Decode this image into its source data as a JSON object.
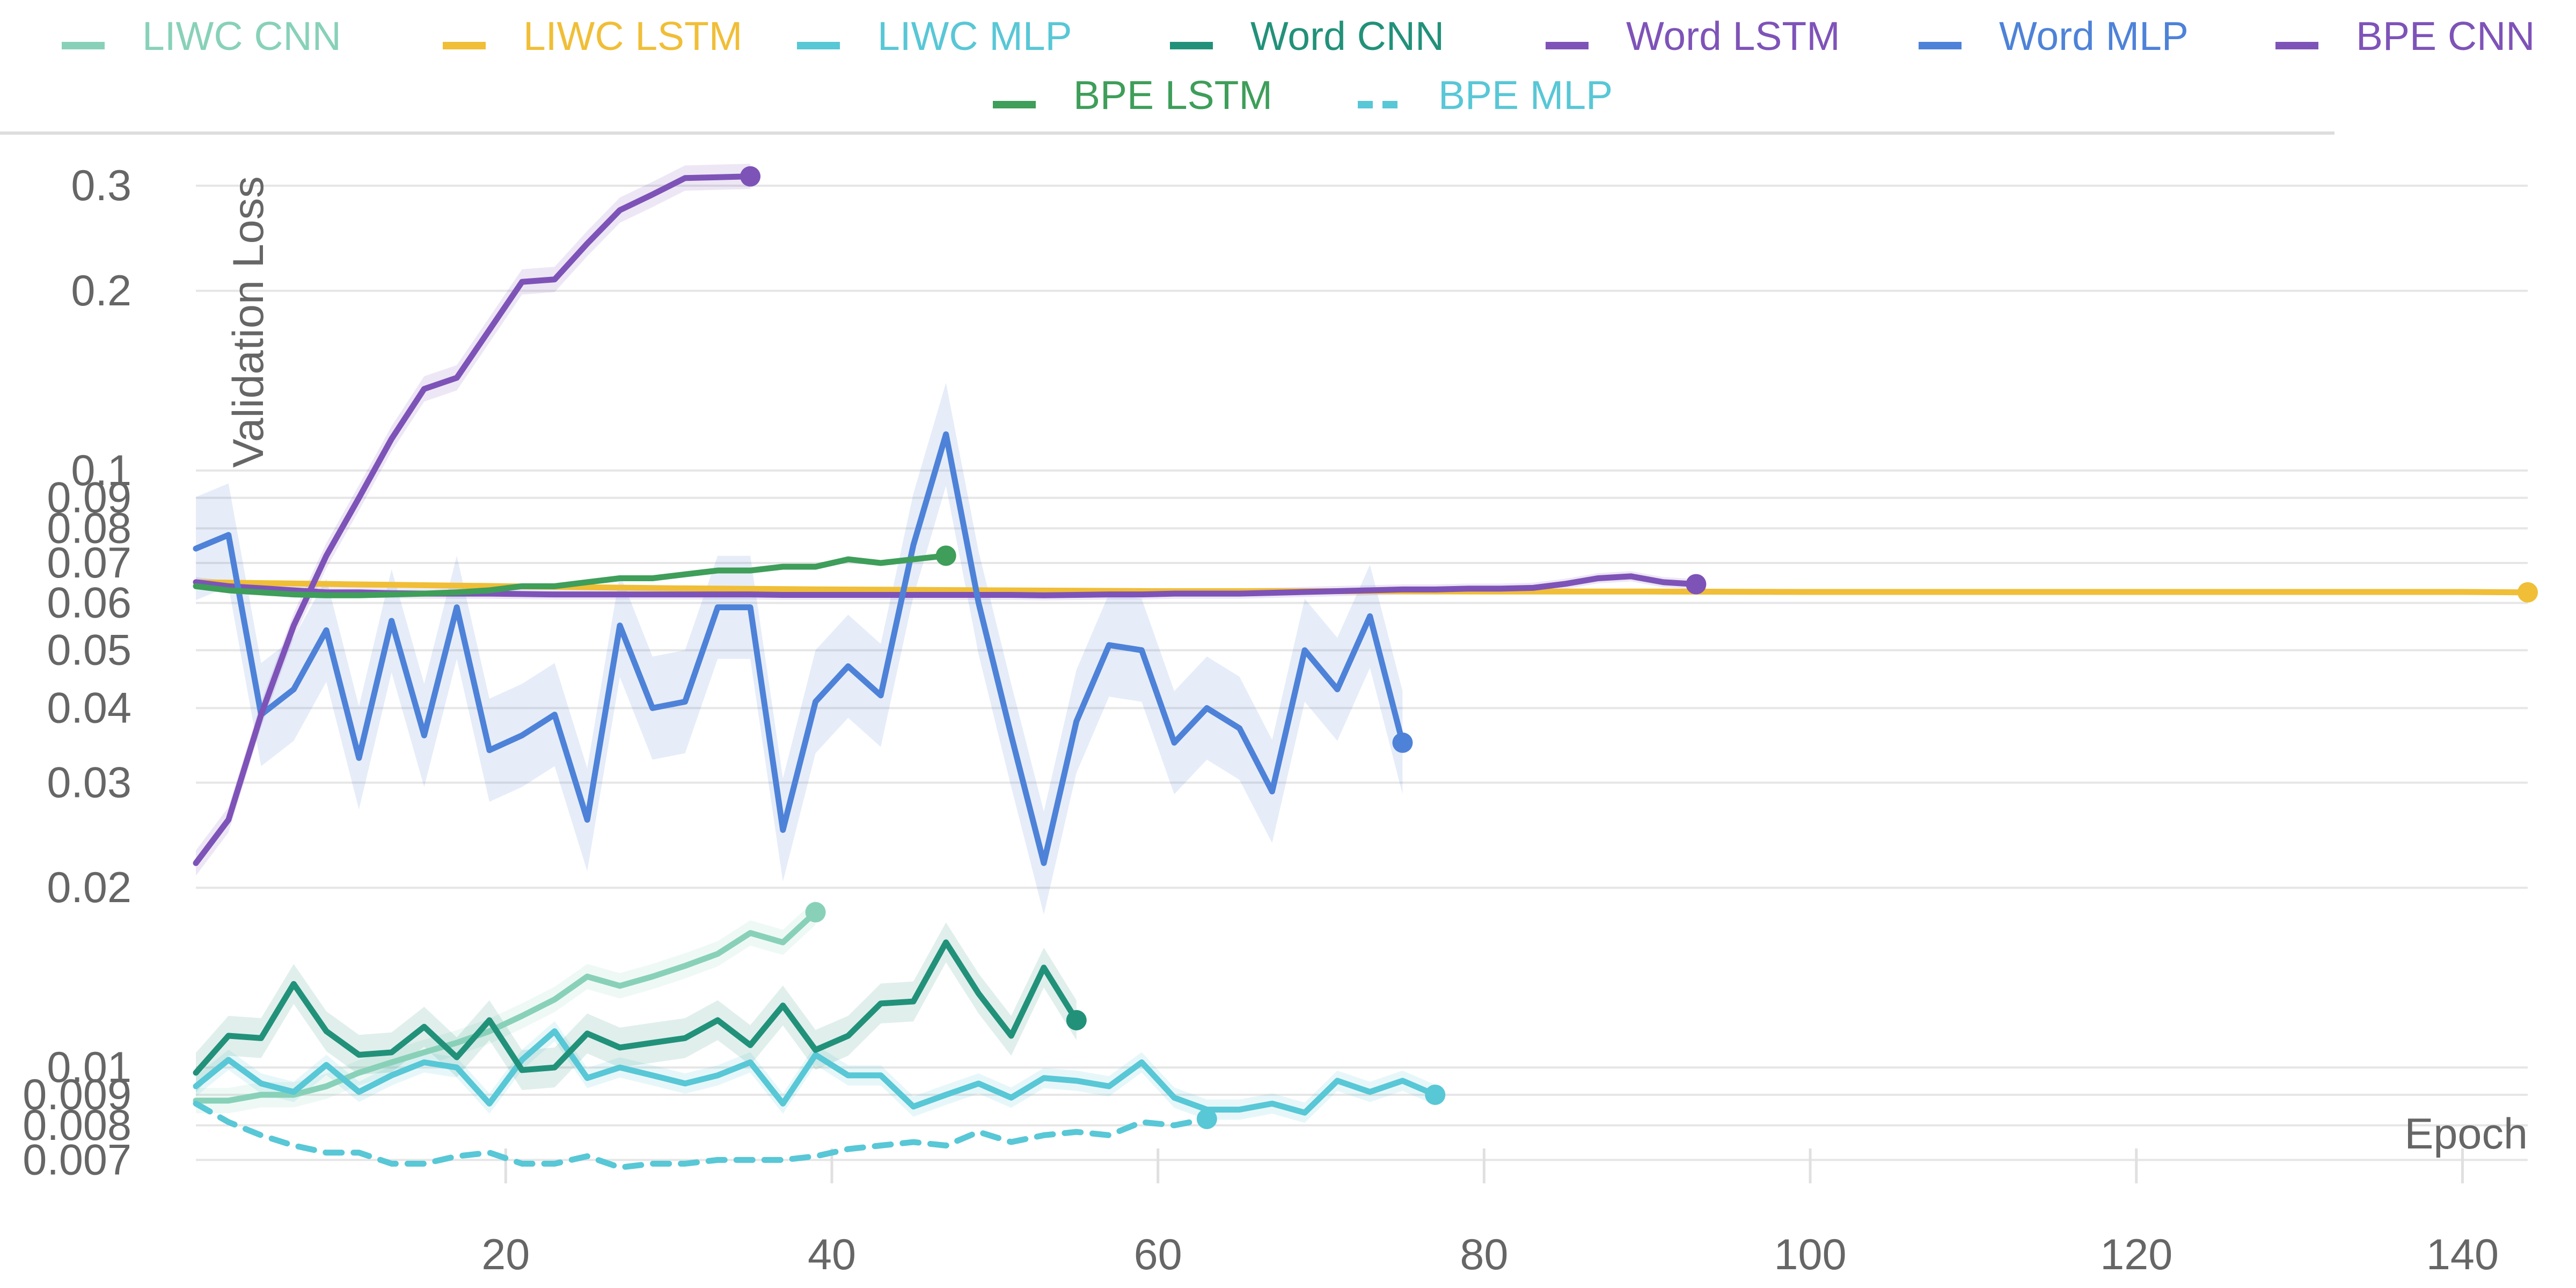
{
  "chart_data": {
    "type": "line",
    "title": "",
    "xlabel": "Epoch",
    "ylabel": "Validation Loss",
    "y_scale": "log",
    "xlim": [
      1,
      144
    ],
    "ylim": [
      0.0062,
      0.33
    ],
    "grid": true,
    "legend_placement": "top",
    "x_ticks": [
      20,
      40,
      60,
      80,
      100,
      120,
      140
    ],
    "y_ticks": [
      {
        "value": 0.3,
        "label": "0.3"
      },
      {
        "value": 0.2,
        "label": "0.2"
      },
      {
        "value": 0.1,
        "label": "0.1"
      },
      {
        "value": 0.09,
        "label": "0.09"
      },
      {
        "value": 0.08,
        "label": "0.08"
      },
      {
        "value": 0.07,
        "label": "0.07"
      },
      {
        "value": 0.06,
        "label": "0.06"
      },
      {
        "value": 0.05,
        "label": "0.05"
      },
      {
        "value": 0.04,
        "label": "0.04"
      },
      {
        "value": 0.03,
        "label": "0.03"
      },
      {
        "value": 0.02,
        "label": "0.02"
      },
      {
        "value": 0.01,
        "label": "0.01"
      },
      {
        "value": 0.009,
        "label": "0.009"
      },
      {
        "value": 0.008,
        "label": "0.008"
      },
      {
        "value": 0.007,
        "label": "0.007"
      }
    ],
    "series": [
      {
        "name": "LIWC CNN",
        "color": "#88d1b8",
        "dash": false,
        "x": [
          1,
          3,
          5,
          7,
          9,
          11,
          13,
          15,
          17,
          19,
          21,
          23,
          25,
          27,
          29,
          31,
          33,
          35,
          37,
          39
        ],
        "y": [
          0.0088,
          0.0088,
          0.009,
          0.009,
          0.0093,
          0.0098,
          0.0102,
          0.0106,
          0.011,
          0.0115,
          0.0122,
          0.013,
          0.0142,
          0.0137,
          0.0142,
          0.0148,
          0.0155,
          0.0168,
          0.0162,
          0.0182
        ],
        "band": 0.05
      },
      {
        "name": "LIWC LSTM",
        "color": "#f0be37",
        "dash": false,
        "x": [
          1,
          10,
          20,
          30,
          40,
          50,
          60,
          70,
          80,
          90,
          100,
          110,
          120,
          130,
          140,
          144
        ],
        "y": [
          0.065,
          0.0645,
          0.064,
          0.0635,
          0.0632,
          0.063,
          0.0628,
          0.0628,
          0.0627,
          0.0627,
          0.0626,
          0.0626,
          0.0626,
          0.0626,
          0.0626,
          0.0625
        ],
        "band": 0.0
      },
      {
        "name": "LIWC MLP",
        "color": "#58c7d6",
        "dash": false,
        "x": [
          1,
          3,
          5,
          7,
          9,
          11,
          13,
          15,
          17,
          19,
          21,
          23,
          25,
          27,
          29,
          31,
          33,
          35,
          37,
          39,
          41,
          43,
          45,
          47,
          49,
          51,
          53,
          55,
          57,
          59,
          61,
          63,
          65,
          67,
          69,
          71,
          73,
          75,
          77
        ],
        "y": [
          0.0093,
          0.0103,
          0.0094,
          0.0091,
          0.0101,
          0.0091,
          0.0097,
          0.0102,
          0.01,
          0.0087,
          0.0103,
          0.0115,
          0.0096,
          0.01,
          0.0097,
          0.0094,
          0.0097,
          0.0102,
          0.0087,
          0.0105,
          0.0097,
          0.0097,
          0.0086,
          0.009,
          0.0094,
          0.0089,
          0.0096,
          0.0095,
          0.0093,
          0.0102,
          0.0089,
          0.0085,
          0.0085,
          0.0087,
          0.0084,
          0.0095,
          0.0091,
          0.0095,
          0.009
        ],
        "band": 0.04
      },
      {
        "name": "Word CNN",
        "color": "#22917a",
        "dash": false,
        "x": [
          1,
          3,
          5,
          7,
          9,
          11,
          13,
          15,
          17,
          19,
          21,
          23,
          25,
          27,
          29,
          31,
          33,
          35,
          37,
          39,
          41,
          43,
          45,
          47,
          49,
          51,
          53,
          55
        ],
        "y": [
          0.0098,
          0.0113,
          0.0112,
          0.0138,
          0.0115,
          0.0105,
          0.0106,
          0.0117,
          0.0104,
          0.012,
          0.0099,
          0.01,
          0.0114,
          0.0108,
          0.011,
          0.0112,
          0.012,
          0.0109,
          0.0127,
          0.0107,
          0.0113,
          0.0128,
          0.0129,
          0.0162,
          0.0133,
          0.0113,
          0.0147,
          0.012
        ],
        "band": 0.08
      },
      {
        "name": "Word LSTM",
        "color": "#7e53b8",
        "dash": false,
        "x": [
          1,
          3,
          5,
          7,
          9,
          11,
          13,
          15,
          17,
          19,
          21,
          23,
          25,
          27,
          29,
          31,
          33,
          35,
          37,
          39,
          41,
          43,
          45,
          47,
          49,
          51,
          53,
          55,
          57,
          59,
          61,
          63,
          65,
          67,
          69,
          71,
          73,
          75,
          77,
          79,
          81,
          83,
          85,
          87,
          89,
          91,
          93
        ],
        "y": [
          0.065,
          0.064,
          0.0635,
          0.063,
          0.0625,
          0.0625,
          0.0623,
          0.0622,
          0.0622,
          0.0622,
          0.0621,
          0.062,
          0.062,
          0.062,
          0.062,
          0.062,
          0.062,
          0.062,
          0.0619,
          0.0619,
          0.0619,
          0.0619,
          0.0619,
          0.0619,
          0.0619,
          0.0619,
          0.0618,
          0.0619,
          0.062,
          0.062,
          0.0622,
          0.0622,
          0.0622,
          0.0624,
          0.0626,
          0.0628,
          0.063,
          0.0632,
          0.0632,
          0.0634,
          0.0634,
          0.0636,
          0.0646,
          0.066,
          0.0665,
          0.065,
          0.0645
        ],
        "band": 0.02
      },
      {
        "name": "Word MLP",
        "color": "#4e82d8",
        "dash": false,
        "x": [
          1,
          3,
          5,
          7,
          9,
          11,
          13,
          15,
          17,
          19,
          21,
          23,
          25,
          27,
          29,
          31,
          33,
          35,
          37,
          39,
          41,
          43,
          45,
          47,
          49,
          51,
          53,
          55,
          57,
          59,
          61,
          63,
          65,
          67,
          69,
          71,
          73,
          75
        ],
        "y": [
          0.074,
          0.078,
          0.039,
          0.043,
          0.054,
          0.033,
          0.056,
          0.036,
          0.059,
          0.034,
          0.036,
          0.039,
          0.026,
          0.055,
          0.04,
          0.041,
          0.059,
          0.059,
          0.025,
          0.041,
          0.047,
          0.042,
          0.075,
          0.115,
          0.06,
          0.036,
          0.022,
          0.038,
          0.051,
          0.05,
          0.035,
          0.04,
          0.037,
          0.029,
          0.05,
          0.043,
          0.057,
          0.035
        ],
        "band": 0.22
      },
      {
        "name": "BPE CNN",
        "color": "#7e53b8",
        "dash": false,
        "x": [
          1,
          3,
          5,
          7,
          9,
          11,
          13,
          15,
          17,
          19,
          21,
          23,
          25,
          27,
          29,
          31,
          33,
          35
        ],
        "y": [
          0.022,
          0.026,
          0.039,
          0.055,
          0.072,
          0.09,
          0.113,
          0.137,
          0.143,
          0.172,
          0.207,
          0.209,
          0.24,
          0.273,
          0.29,
          0.309,
          0.31,
          0.311
        ],
        "band": 0.05
      },
      {
        "name": "BPE LSTM",
        "color": "#3e9e5a",
        "dash": false,
        "x": [
          1,
          3,
          5,
          7,
          9,
          11,
          13,
          15,
          17,
          19,
          21,
          23,
          25,
          27,
          29,
          31,
          33,
          35,
          37,
          39,
          41,
          43,
          45,
          47
        ],
        "y": [
          0.064,
          0.063,
          0.0625,
          0.062,
          0.0618,
          0.0618,
          0.062,
          0.0622,
          0.0625,
          0.063,
          0.064,
          0.064,
          0.065,
          0.066,
          0.066,
          0.067,
          0.068,
          0.068,
          0.069,
          0.069,
          0.071,
          0.07,
          0.071,
          0.072
        ],
        "band": 0.0
      },
      {
        "name": "BPE MLP",
        "color": "#58c7d6",
        "dash": true,
        "x": [
          1,
          3,
          5,
          7,
          9,
          11,
          13,
          15,
          17,
          19,
          21,
          23,
          25,
          27,
          29,
          31,
          33,
          35,
          37,
          39,
          41,
          43,
          45,
          47,
          49,
          51,
          53,
          55,
          57,
          59,
          61,
          63
        ],
        "y": [
          0.0087,
          0.0081,
          0.0077,
          0.0074,
          0.0072,
          0.0072,
          0.0069,
          0.0069,
          0.0071,
          0.0072,
          0.0069,
          0.0069,
          0.0071,
          0.0068,
          0.0069,
          0.0069,
          0.007,
          0.007,
          0.007,
          0.0071,
          0.0073,
          0.0074,
          0.0075,
          0.0074,
          0.0078,
          0.0075,
          0.0077,
          0.0078,
          0.0077,
          0.0081,
          0.008,
          0.0082
        ],
        "band": 0.0
      }
    ]
  }
}
